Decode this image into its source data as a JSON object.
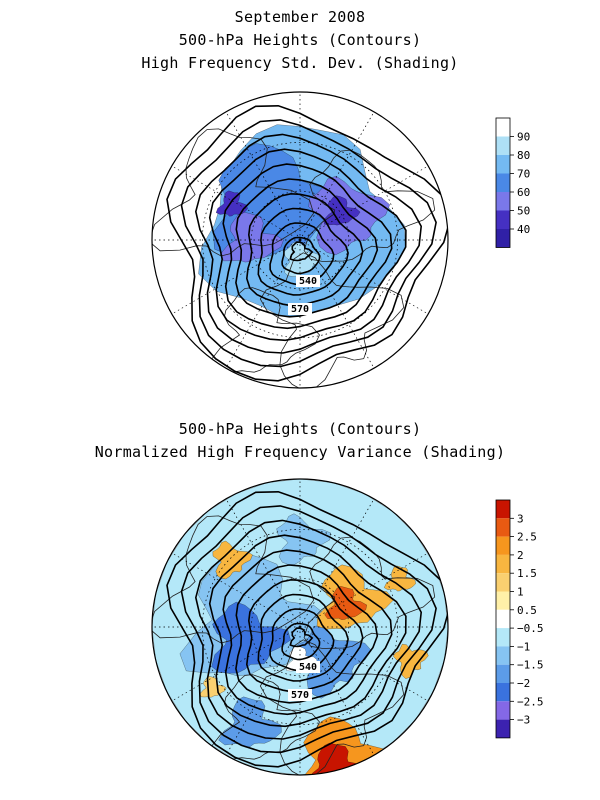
{
  "panels": [
    {
      "title_lines": [
        "September 2008",
        "500-hPa Heights (Contours)",
        "High Frequency Std. Dev. (Shading)"
      ],
      "contour_labels": [
        "540",
        "570"
      ],
      "legend": {
        "labels": [
          "40",
          "50",
          "60",
          "70",
          "80",
          "90"
        ],
        "colors": [
          "#ffffff",
          "#aee0f6",
          "#74baf2",
          "#4a88e6",
          "#7a78ea",
          "#4530c2",
          "#3020a6"
        ]
      }
    },
    {
      "title_lines": [
        "500-hPa Heights (Contours)",
        "Normalized High Frequency Variance (Shading)"
      ],
      "contour_labels": [
        "540",
        "570"
      ],
      "legend": {
        "labels": [
          "3",
          "2.5",
          "2",
          "1.5",
          "1",
          "0.5",
          "−0.5",
          "−1",
          "−1.5",
          "−2",
          "−2.5",
          "−3"
        ],
        "colors": [
          "#c81400",
          "#e85a12",
          "#f6961e",
          "#f8b640",
          "#fad070",
          "#fff0a8",
          "#ffffff",
          "#b4e8f8",
          "#86c4f2",
          "#5c9ce8",
          "#3a72de",
          "#8468e6",
          "#3c22b0"
        ]
      }
    }
  ]
}
